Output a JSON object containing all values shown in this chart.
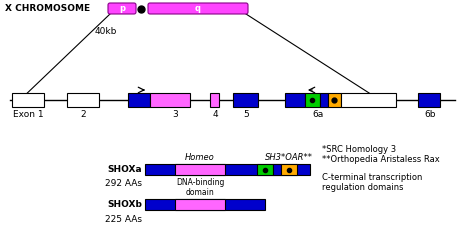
{
  "bg_color": "#ffffff",
  "chromosome_label": "X CHROMOSOME",
  "chromosome_p_label": "p",
  "chromosome_q_label": "q",
  "chromosome_color": "#ff44ff",
  "kb_label": "40kb",
  "exon_labels": [
    "Exon 1",
    "2",
    "3",
    "4",
    "5",
    "6a",
    "6b"
  ],
  "shox_a_label": "SHOXa",
  "shox_a_aa": "292 AAs",
  "shox_b_label": "SHOXb",
  "shox_b_aa": "225 AAs",
  "homeo_label": "Homeo",
  "sh3_label": "SH3*OAR**",
  "dna_label": "DNA-binding\ndomain",
  "note1": "*SRC Homology 3",
  "note2": "**Orthopedia Aristaless Rax",
  "note3": "C-terminal transcription\nregulation domains",
  "blue_color": "#0000cc",
  "pink_color": "#ff66ff",
  "green_color": "#00cc00",
  "orange_color": "#ffaa00",
  "white_color": "#ffffff",
  "line_color": "#000000",
  "figw": 4.74,
  "figh": 2.27,
  "dpi": 100
}
